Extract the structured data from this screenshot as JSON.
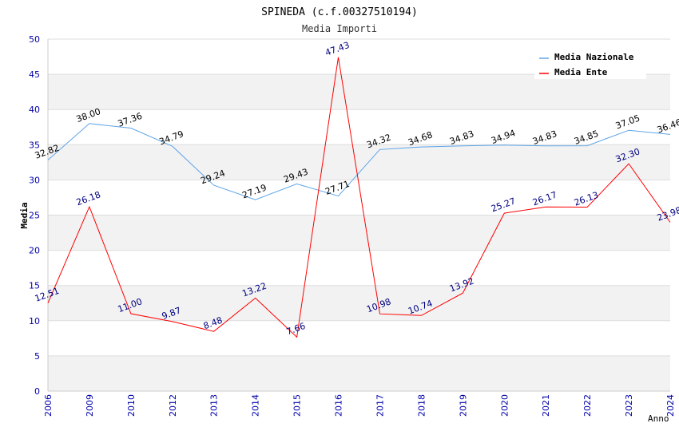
{
  "chart_data": {
    "type": "line",
    "title": "SPINEDA (c.f.00327510194)",
    "subtitle": "Media Importi",
    "xlabel": "Anno",
    "ylabel": "Media",
    "ylim": [
      0,
      50
    ],
    "y_ticks": [
      "0",
      "5",
      "10",
      "15",
      "20",
      "25",
      "30",
      "35",
      "40",
      "45",
      "50"
    ],
    "grid": true,
    "legend_position": "top-right",
    "categories": [
      "2006",
      "2009",
      "2010",
      "2012",
      "2013",
      "2014",
      "2015",
      "2016",
      "2017",
      "2018",
      "2019",
      "2020",
      "2021",
      "2022",
      "2023",
      "2024"
    ],
    "series": [
      {
        "name": "Media Nazionale",
        "color": "#5da5e8",
        "label_color": "#000000",
        "values": [
          32.82,
          38.0,
          37.36,
          34.79,
          29.24,
          27.19,
          29.43,
          27.71,
          34.32,
          34.68,
          34.83,
          34.94,
          34.83,
          34.85,
          37.05,
          36.46
        ],
        "labels": [
          "32.82",
          "38.00",
          "37.36",
          "34.79",
          "29.24",
          "27.19",
          "29.43",
          "27.71",
          "34.32",
          "34.68",
          "34.83",
          "34.94",
          "34.83",
          "34.85",
          "37.05",
          "36.46"
        ]
      },
      {
        "name": "Media Ente",
        "color": "#ff0000",
        "label_color": "#000080",
        "values": [
          12.51,
          26.18,
          11.0,
          9.87,
          8.48,
          13.22,
          7.66,
          47.43,
          10.98,
          10.74,
          13.92,
          25.27,
          26.17,
          26.13,
          32.3,
          23.98
        ],
        "labels": [
          "12.51",
          "26.18",
          "11.00",
          "9.87",
          "8.48",
          "13.22",
          "7.66",
          "47.43",
          "10.98",
          "10.74",
          "13.92",
          "25.27",
          "26.17",
          "26.13",
          "32.30",
          "23.98"
        ]
      }
    ]
  }
}
